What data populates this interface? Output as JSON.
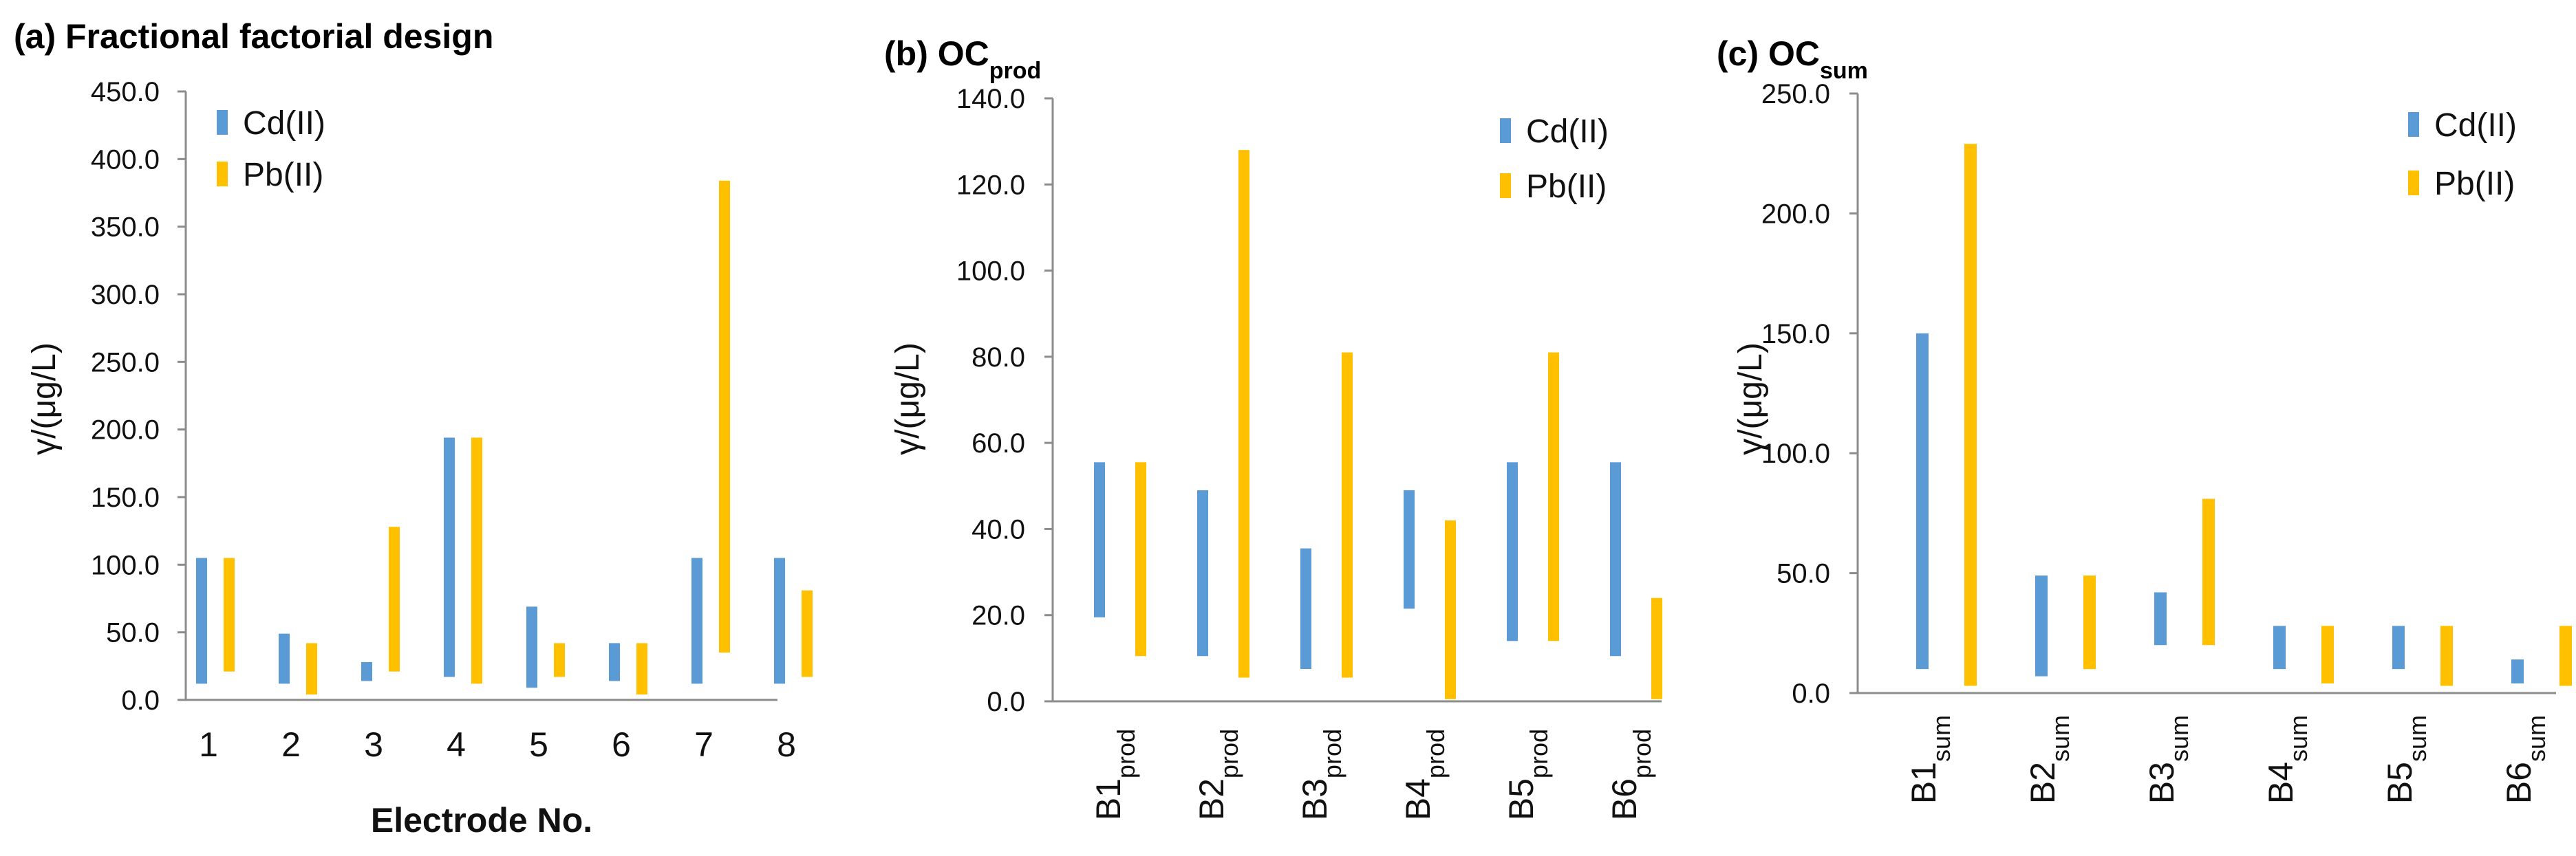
{
  "colors": {
    "cd": "#5B9BD5",
    "pb": "#FFC000",
    "axis": "#8c8c8c"
  },
  "chart_data": [
    {
      "type": "bar",
      "title": "(a) Fractional factorial design",
      "title_main": "(a) Fractional factorial design",
      "title_sub": "",
      "xlabel": "Electrode No.",
      "ylabel": "γ/(μg/L)",
      "ylim": [
        0,
        450
      ],
      "yticks": [
        "0.0",
        "50.0",
        "100.0",
        "150.0",
        "200.0",
        "250.0",
        "300.0",
        "350.0",
        "400.0",
        "450.0"
      ],
      "categories": [
        {
          "base": "1",
          "sub": ""
        },
        {
          "base": "2",
          "sub": ""
        },
        {
          "base": "3",
          "sub": ""
        },
        {
          "base": "4",
          "sub": ""
        },
        {
          "base": "5",
          "sub": ""
        },
        {
          "base": "6",
          "sub": ""
        },
        {
          "base": "7",
          "sub": ""
        },
        {
          "base": "8",
          "sub": ""
        }
      ],
      "legend": [
        "Cd(II)",
        "Pb(II)"
      ],
      "series": [
        {
          "name": "Cd(II)",
          "low": [
            12,
            12,
            14,
            17,
            9,
            14,
            12,
            12
          ],
          "high": [
            105,
            49,
            28,
            194,
            69,
            42,
            105,
            105
          ]
        },
        {
          "name": "Pb(II)",
          "low": [
            21,
            4,
            21,
            12,
            17,
            4,
            35,
            17
          ],
          "high": [
            105,
            42,
            128,
            194,
            42,
            42,
            384,
            81
          ]
        }
      ]
    },
    {
      "type": "bar",
      "title": "(b) OCprod",
      "title_main": "(b) OC",
      "title_sub": "prod",
      "xlabel": "",
      "ylabel": "γ/(μg/L)",
      "ylim": [
        0,
        140
      ],
      "yticks": [
        "0.0",
        "20.0",
        "40.0",
        "60.0",
        "80.0",
        "100.0",
        "120.0",
        "140.0"
      ],
      "categories": [
        {
          "base": "B1",
          "sub": "prod"
        },
        {
          "base": "B2",
          "sub": "prod"
        },
        {
          "base": "B3",
          "sub": "prod"
        },
        {
          "base": "B4",
          "sub": "prod"
        },
        {
          "base": "B5",
          "sub": "prod"
        },
        {
          "base": "B6",
          "sub": "prod"
        }
      ],
      "legend": [
        "Cd(II)",
        "Pb(II)"
      ],
      "series": [
        {
          "name": "Cd(II)",
          "low": [
            19.5,
            10.5,
            7.5,
            21.5,
            14,
            10.5
          ],
          "high": [
            55.5,
            49,
            35.5,
            49,
            55.5,
            55.5
          ]
        },
        {
          "name": "Pb(II)",
          "low": [
            10.5,
            5.5,
            5.5,
            0.5,
            14,
            0.5
          ],
          "high": [
            55.5,
            128,
            81,
            42,
            81,
            24
          ]
        }
      ]
    },
    {
      "type": "bar",
      "title": "(c) OCsum",
      "title_main": "(c) OC",
      "title_sub": "sum",
      "xlabel": "",
      "ylabel": "γ/(μg/L)",
      "ylim": [
        0,
        250
      ],
      "yticks": [
        "0.0",
        "50.0",
        "100.0",
        "150.0",
        "200.0",
        "250.0"
      ],
      "categories": [
        {
          "base": "B1",
          "sub": "sum"
        },
        {
          "base": "B2",
          "sub": "sum"
        },
        {
          "base": "B3",
          "sub": "sum"
        },
        {
          "base": "B4",
          "sub": "sum"
        },
        {
          "base": "B5",
          "sub": "sum"
        },
        {
          "base": "B6",
          "sub": "sum"
        }
      ],
      "legend": [
        "Cd(II)",
        "Pb(II)"
      ],
      "series": [
        {
          "name": "Cd(II)",
          "low": [
            10,
            7,
            20,
            10,
            10,
            4
          ],
          "high": [
            150,
            49,
            42,
            28,
            28,
            14
          ]
        },
        {
          "name": "Pb(II)",
          "low": [
            3,
            10,
            20,
            4,
            3,
            3
          ],
          "high": [
            229,
            49,
            81,
            28,
            28,
            28
          ]
        }
      ]
    }
  ]
}
